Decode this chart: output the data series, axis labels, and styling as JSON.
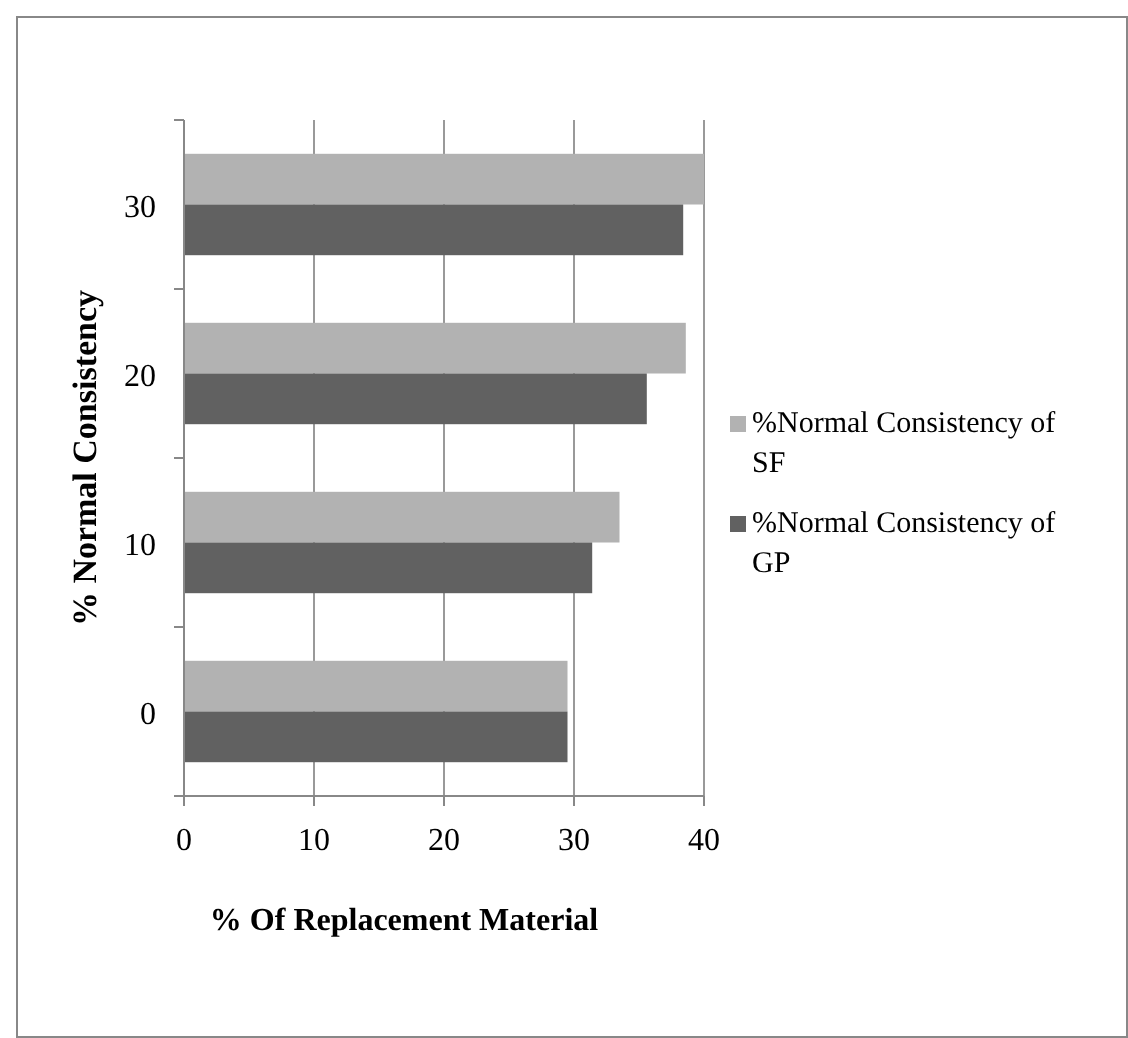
{
  "chart_data": {
    "type": "bar",
    "orientation": "horizontal",
    "xlabel": "%  Of Replacement Material",
    "ylabel": "% Normal Consistency",
    "categories": [
      "30",
      "20",
      "10",
      "0"
    ],
    "series": [
      {
        "name": "%Normal Consistency of SF",
        "color": "#b2b2b2",
        "values": [
          40,
          38.6,
          33.5,
          29.5
        ]
      },
      {
        "name": "%Normal Consistency of GP",
        "color": "#616161",
        "values": [
          38.4,
          35.6,
          31.4,
          29.5
        ]
      }
    ],
    "xlim": [
      0,
      40
    ],
    "xticks": [
      0,
      10,
      20,
      30,
      40
    ],
    "grid": "x",
    "legend": "right"
  }
}
